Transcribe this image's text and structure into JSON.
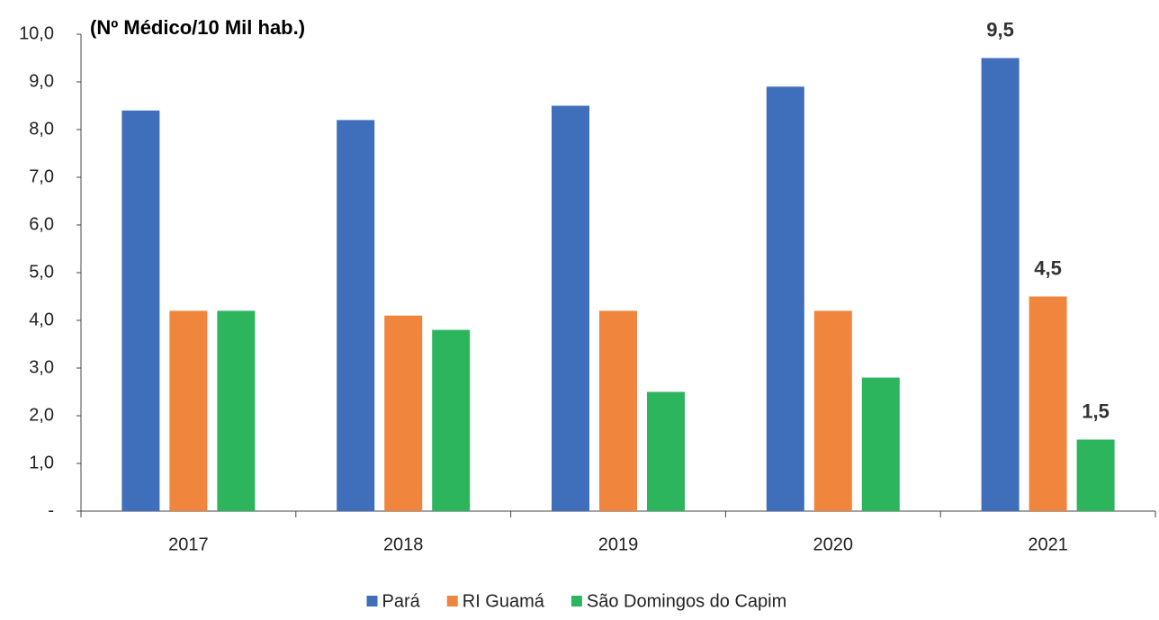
{
  "chart_data": {
    "type": "bar",
    "title": "(Nº Médico/10 Mil hab.)",
    "categories": [
      "2017",
      "2018",
      "2019",
      "2020",
      "2021"
    ],
    "series": [
      {
        "name": "Pará",
        "color": "#3f6fba",
        "values": [
          8.4,
          8.2,
          8.5,
          8.9,
          9.5
        ],
        "value_labels": [
          null,
          null,
          null,
          null,
          "9,5"
        ]
      },
      {
        "name": "RI Guamá",
        "color": "#f0853d",
        "values": [
          4.2,
          4.1,
          4.2,
          4.2,
          4.5
        ],
        "value_labels": [
          null,
          null,
          null,
          null,
          "4,5"
        ]
      },
      {
        "name": "São Domingos do Capim",
        "color": "#2db55d",
        "values": [
          4.2,
          3.8,
          2.5,
          2.8,
          1.5
        ],
        "value_labels": [
          null,
          null,
          null,
          null,
          "1,5"
        ]
      }
    ],
    "ylim": [
      0,
      10
    ],
    "yticks": [
      {
        "value": 0,
        "label": "-"
      },
      {
        "value": 1,
        "label": "1,0"
      },
      {
        "value": 2,
        "label": "2,0"
      },
      {
        "value": 3,
        "label": "3,0"
      },
      {
        "value": 4,
        "label": "4,0"
      },
      {
        "value": 5,
        "label": "5,0"
      },
      {
        "value": 6,
        "label": "6,0"
      },
      {
        "value": 7,
        "label": "7,0"
      },
      {
        "value": 8,
        "label": "8,0"
      },
      {
        "value": 9,
        "label": "9,0"
      },
      {
        "value": 10,
        "label": "10,0"
      }
    ],
    "grid": false,
    "legend": "bottom"
  }
}
